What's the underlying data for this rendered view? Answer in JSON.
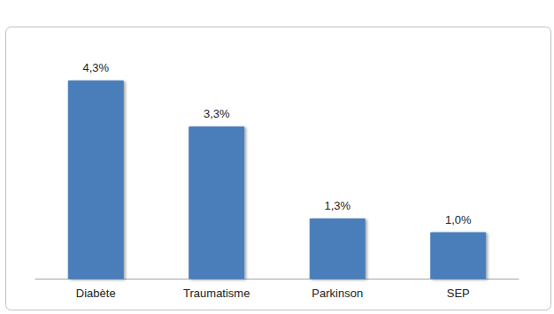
{
  "chart_data": {
    "type": "bar",
    "categories": [
      "Diabète",
      "Traumatisme",
      "Parkinson",
      "SEP"
    ],
    "values": [
      4.3,
      3.3,
      1.3,
      1.0
    ],
    "value_labels": [
      "4,3%",
      "3,3%",
      "1,3%",
      "1,0%"
    ],
    "color": "#4a7ebb",
    "ylim": [
      0,
      5
    ],
    "yticks": [
      0,
      1,
      2,
      3,
      4,
      5
    ],
    "grid": false,
    "data_labels": true,
    "tick_labels": "x"
  }
}
